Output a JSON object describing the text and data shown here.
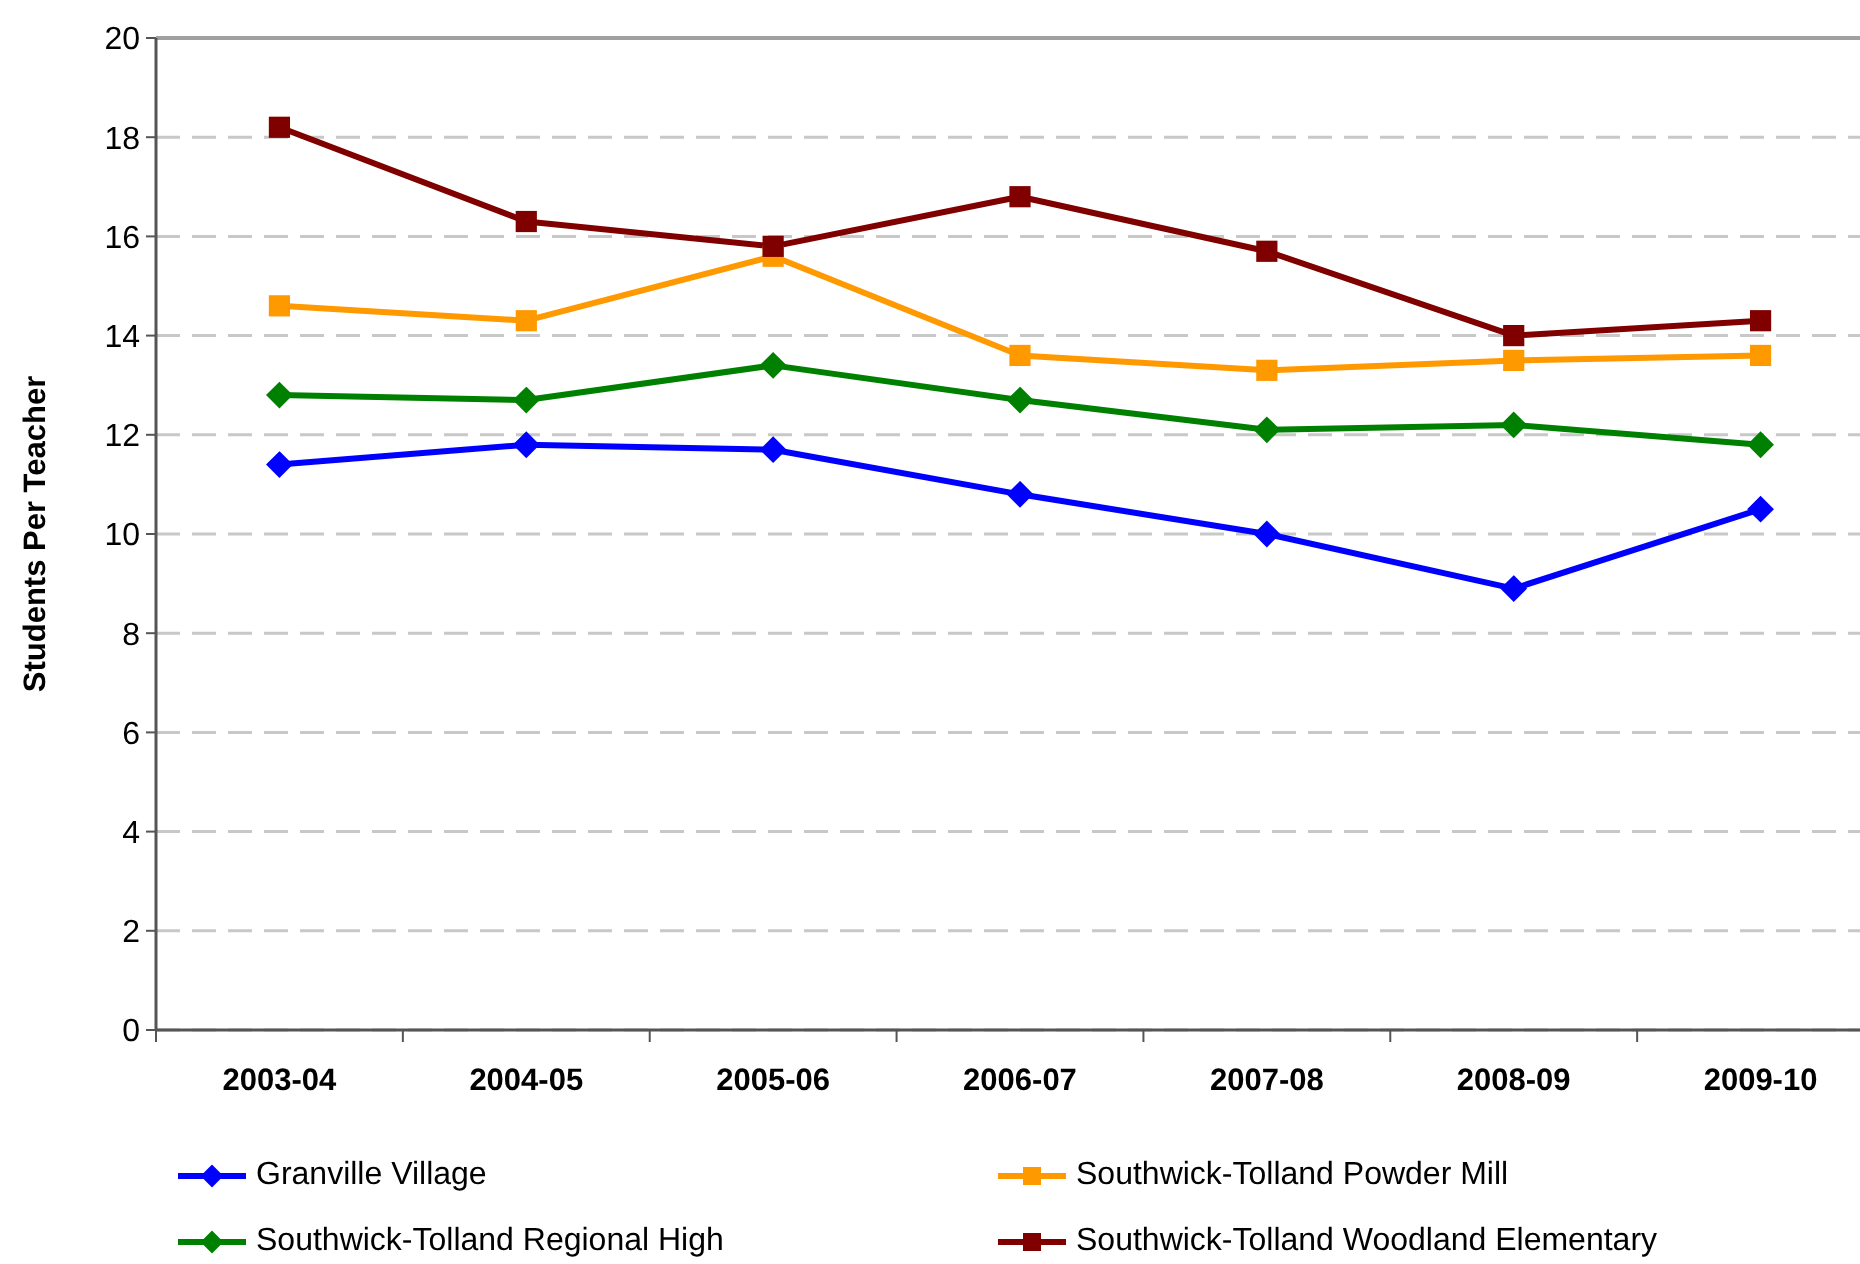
{
  "chart_data": {
    "type": "line",
    "ylabel": "Students Per Teacher",
    "categories": [
      "2003-04",
      "2004-05",
      "2005-06",
      "2006-07",
      "2007-08",
      "2008-09",
      "2009-10"
    ],
    "series": [
      {
        "name": "Granville Village",
        "color": "#0000ff",
        "marker": "diamond",
        "values": [
          11.4,
          11.8,
          11.7,
          10.8,
          10.0,
          8.9,
          10.5
        ]
      },
      {
        "name": "Southwick-Tolland Powder Mill",
        "color": "#ff9900",
        "marker": "square",
        "values": [
          14.6,
          14.3,
          15.6,
          13.6,
          13.3,
          13.5,
          13.6
        ]
      },
      {
        "name": "Southwick-Tolland Regional High",
        "color": "#008000",
        "marker": "diamond",
        "values": [
          12.8,
          12.7,
          13.4,
          12.7,
          12.1,
          12.2,
          11.8
        ]
      },
      {
        "name": "Southwick-Tolland Woodland Elementary",
        "color": "#800000",
        "marker": "square",
        "values": [
          18.2,
          16.3,
          15.8,
          16.8,
          15.7,
          14.0,
          14.3
        ]
      }
    ],
    "ylim": [
      0,
      20
    ],
    "yticks": [
      0,
      2,
      4,
      6,
      8,
      10,
      12,
      14,
      16,
      18,
      20
    ],
    "grid": "y",
    "legend": "bottom",
    "line_style": "solid"
  }
}
